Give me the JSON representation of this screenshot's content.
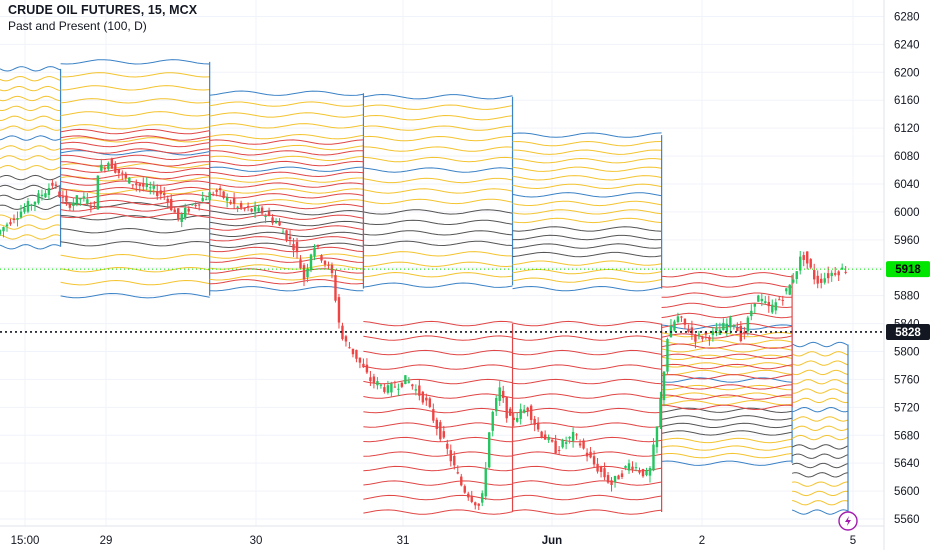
{
  "header": {
    "title": "CRUDE OIL FUTURES, 15, MCX",
    "indicator": "Past and Present (100, D)"
  },
  "colors": {
    "bull": "#22c55e",
    "bear": "#ef4444",
    "blue": "#3b82c6",
    "yellow": "#f4c430",
    "red": "#e04646",
    "grey": "#555555",
    "current_price_bg": "#00e600",
    "dotted_price_bg": "#131722",
    "lightning": "#a21caf"
  },
  "chart_data": {
    "type": "line",
    "title": "CRUDE OIL FUTURES, 15, MCX",
    "y_axis": {
      "ticks": [
        5560,
        5600,
        5640,
        5680,
        5720,
        5760,
        5800,
        5840,
        5880,
        5920,
        5960,
        6000,
        6040,
        6080,
        6120,
        6160,
        6200,
        6240,
        6280
      ],
      "ylim": [
        5550,
        6295
      ]
    },
    "x_axis": {
      "ticks": [
        "15:00",
        "29",
        "30",
        "31",
        "Jun",
        "2",
        "5"
      ]
    },
    "current_price": 5918,
    "reference_price": 5828,
    "price_series": [
      {
        "t": 0,
        "v": 5968
      },
      {
        "t": 4,
        "v": 5995
      },
      {
        "t": 8,
        "v": 6015
      },
      {
        "t": 12,
        "v": 6040
      },
      {
        "t": 15,
        "v": 6010
      },
      {
        "t": 18,
        "v": 6020
      },
      {
        "t": 21,
        "v": 6008
      },
      {
        "t": 21.2,
        "v": 6055
      },
      {
        "t": 24,
        "v": 6072
      },
      {
        "t": 28,
        "v": 6045
      },
      {
        "t": 32,
        "v": 6035
      },
      {
        "t": 36,
        "v": 6025
      },
      {
        "t": 39,
        "v": 5990
      },
      {
        "t": 42,
        "v": 6010
      },
      {
        "t": 47,
        "v": 6030
      },
      {
        "t": 49,
        "v": 6020
      },
      {
        "t": 52,
        "v": 6005
      },
      {
        "t": 57,
        "v": 6000
      },
      {
        "t": 60,
        "v": 5985
      },
      {
        "t": 64,
        "v": 5950
      },
      {
        "t": 66,
        "v": 5905
      },
      {
        "t": 68,
        "v": 5955
      },
      {
        "t": 72,
        "v": 5910
      },
      {
        "t": 74,
        "v": 5820
      },
      {
        "t": 77,
        "v": 5795
      },
      {
        "t": 80,
        "v": 5760
      },
      {
        "t": 84,
        "v": 5745
      },
      {
        "t": 88,
        "v": 5760
      },
      {
        "t": 92,
        "v": 5730
      },
      {
        "t": 96,
        "v": 5670
      },
      {
        "t": 100,
        "v": 5605
      },
      {
        "t": 104,
        "v": 5575
      },
      {
        "t": 106,
        "v": 5700
      },
      {
        "t": 108,
        "v": 5745
      },
      {
        "t": 110,
        "v": 5700
      },
      {
        "t": 114,
        "v": 5720
      },
      {
        "t": 116,
        "v": 5690
      },
      {
        "t": 120,
        "v": 5660
      },
      {
        "t": 124,
        "v": 5680
      },
      {
        "t": 128,
        "v": 5640
      },
      {
        "t": 132,
        "v": 5610
      },
      {
        "t": 136,
        "v": 5640
      },
      {
        "t": 140,
        "v": 5620
      },
      {
        "t": 142,
        "v": 5700
      },
      {
        "t": 144,
        "v": 5820
      },
      {
        "t": 146,
        "v": 5850
      },
      {
        "t": 150,
        "v": 5820
      },
      {
        "t": 154,
        "v": 5825
      },
      {
        "t": 158,
        "v": 5845
      },
      {
        "t": 160,
        "v": 5818
      },
      {
        "t": 163,
        "v": 5880
      },
      {
        "t": 166,
        "v": 5860
      },
      {
        "t": 170,
        "v": 5890
      },
      {
        "t": 173,
        "v": 5940
      },
      {
        "t": 176,
        "v": 5900
      },
      {
        "t": 180,
        "v": 5915
      },
      {
        "t": 182,
        "v": 5918
      }
    ],
    "level_blocks": [
      {
        "t0": 0,
        "t1": 13,
        "top": 6205,
        "bottom": 5950
      },
      {
        "t0": 13,
        "t1": 45,
        "top": 6215,
        "bottom": 5880
      },
      {
        "t0": 45,
        "t1": 78,
        "top": 6170,
        "bottom": 5890
      },
      {
        "t0": 78,
        "t1": 110,
        "top": 6165,
        "bottom": 5895
      },
      {
        "t0": 110,
        "t1": 142,
        "top": 6110,
        "bottom": 5890
      },
      {
        "t0": 142,
        "t1": 170,
        "top": 5835,
        "bottom": 5640
      },
      {
        "t0": 170,
        "t1": 182,
        "top": 5810,
        "bottom": 5570
      }
    ],
    "red_blocks": [
      {
        "t0": 13,
        "t1": 45,
        "top": 6115,
        "bottom": 5995
      },
      {
        "t0": 45,
        "t1": 78,
        "top": 6100,
        "bottom": 5900
      },
      {
        "t0": 78,
        "t1": 110,
        "top": 5840,
        "bottom": 5570
      },
      {
        "t0": 110,
        "t1": 142,
        "top": 5840,
        "bottom": 5570
      },
      {
        "t0": 142,
        "t1": 170,
        "top": 5910,
        "bottom": 5720
      }
    ]
  }
}
